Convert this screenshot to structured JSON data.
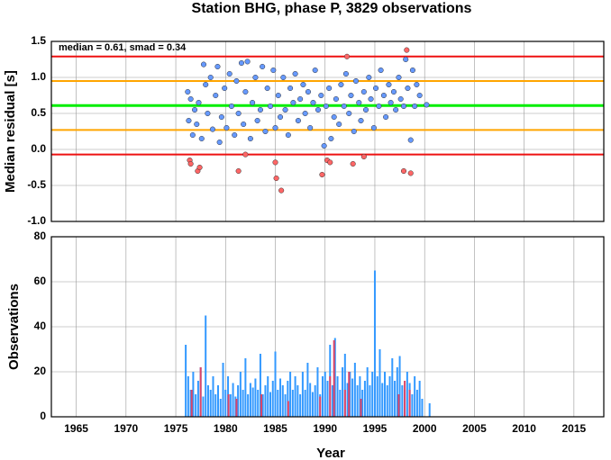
{
  "chart_data": [
    {
      "type": "scatter",
      "title": "Station BHG, phase P, 3829 observations",
      "annotation": "median = 0.61, smad = 0.34",
      "y_label": "Median residual [s]",
      "xlim": [
        1962.5,
        2018
      ],
      "xticks": [
        1965,
        1970,
        1975,
        1980,
        1985,
        1990,
        1995,
        2000,
        2005,
        2010,
        2015
      ],
      "ylim": [
        -1,
        1.5
      ],
      "yticks": [
        {
          "value": -1,
          "label": "-1.0"
        },
        -0.5,
        {
          "value": 0,
          "label": "0.0"
        },
        0.5,
        {
          "value": 1,
          "label": "1.0"
        },
        1.5
      ],
      "grid": true,
      "hlines": [
        {
          "value": 1.29,
          "color": "#ee1111"
        },
        {
          "value": 0.95,
          "color": "#ffa500"
        },
        {
          "value": 0.61,
          "color": "#00ee00"
        },
        {
          "value": 0.27,
          "color": "#ffa500"
        },
        {
          "value": -0.07,
          "color": "#ee1111"
        }
      ],
      "series": [
        {
          "color": "#6699ff",
          "x": [
            1976.2,
            1976.3,
            1976.5,
            1976.7,
            1976.9,
            1977.1,
            1977.3,
            1977.6,
            1977.8,
            1978.0,
            1978.2,
            1978.5,
            1978.7,
            1979.0,
            1979.2,
            1979.4,
            1979.6,
            1979.9,
            1980.1,
            1980.4,
            1980.6,
            1980.9,
            1981.1,
            1981.3,
            1981.6,
            1981.8,
            1982.0,
            1982.2,
            1982.5,
            1982.7,
            1983.0,
            1983.2,
            1983.5,
            1983.7,
            1984.0,
            1984.2,
            1984.5,
            1984.8,
            1985.0,
            1985.3,
            1985.5,
            1985.8,
            1986.0,
            1986.3,
            1986.5,
            1986.8,
            1987.0,
            1987.3,
            1987.5,
            1987.8,
            1988.0,
            1988.3,
            1988.5,
            1988.8,
            1989.0,
            1989.3,
            1989.6,
            1989.9,
            1990.1,
            1990.4,
            1990.6,
            1990.9,
            1991.1,
            1991.4,
            1991.6,
            1991.9,
            1992.1,
            1992.4,
            1992.6,
            1992.9,
            1993.1,
            1993.4,
            1993.6,
            1993.9,
            1994.1,
            1994.4,
            1994.6,
            1994.9,
            1995.1,
            1995.4,
            1995.6,
            1995.9,
            1996.1,
            1996.4,
            1996.6,
            1996.9,
            1997.1,
            1997.4,
            1997.6,
            1997.9,
            1998.1,
            1998.3,
            1998.6,
            1998.8,
            1999.0,
            1999.2,
            1999.5,
            2000.2
          ],
          "values": [
            0.8,
            0.4,
            0.7,
            0.2,
            0.55,
            0.35,
            0.65,
            0.15,
            1.18,
            0.9,
            0.5,
            1.0,
            0.28,
            0.75,
            1.15,
            0.1,
            0.45,
            0.85,
            0.3,
            1.05,
            0.6,
            0.2,
            0.95,
            0.5,
            1.2,
            0.35,
            0.8,
            1.22,
            0.15,
            0.65,
            1.0,
            0.4,
            0.55,
            1.15,
            0.25,
            0.85,
            0.6,
            1.1,
            0.3,
            0.75,
            0.45,
            1.0,
            0.55,
            0.2,
            0.85,
            0.65,
            1.05,
            0.4,
            0.7,
            0.9,
            0.5,
            0.8,
            0.3,
            0.65,
            1.1,
            0.55,
            0.75,
            0.05,
            0.6,
            0.85,
            0.15,
            0.45,
            0.7,
            0.35,
            0.9,
            0.6,
            1.05,
            0.5,
            0.75,
            0.25,
            0.95,
            0.65,
            0.4,
            0.8,
            0.55,
            1.0,
            0.7,
            0.3,
            0.85,
            0.6,
            1.1,
            0.75,
            0.45,
            0.9,
            0.65,
            0.8,
            0.55,
            1.0,
            0.7,
            0.6,
            1.25,
            0.85,
            0.13,
            1.1,
            0.6,
            0.9,
            0.75,
            0.62
          ]
        },
        {
          "color": "#ff6666",
          "x": [
            1976.4,
            1976.5,
            1977.2,
            1977.4,
            1981.3,
            1982.0,
            1985.0,
            1985.1,
            1985.6,
            1989.7,
            1990.2,
            1990.5,
            1992.2,
            1992.8,
            1993.9,
            1997.9,
            1998.2,
            1998.6
          ],
          "values": [
            -0.15,
            -0.2,
            -0.3,
            -0.25,
            -0.3,
            -0.07,
            -0.18,
            -0.4,
            -0.57,
            -0.35,
            -0.15,
            -0.18,
            1.29,
            -0.2,
            -0.1,
            -0.3,
            1.38,
            -0.33
          ]
        }
      ]
    },
    {
      "type": "bar",
      "x_label": "Year",
      "y_label": "Observations",
      "xlim": [
        1962.5,
        2018
      ],
      "xticks": [
        1965,
        1970,
        1975,
        1980,
        1985,
        1990,
        1995,
        2000,
        2005,
        2010,
        2015
      ],
      "ylim": [
        0,
        80
      ],
      "yticks": [
        0,
        20,
        40,
        60,
        80
      ],
      "grid": true,
      "series": [
        {
          "color": "#3399ff",
          "x": [
            1976.0,
            1976.25,
            1976.5,
            1976.75,
            1977.0,
            1977.25,
            1977.5,
            1977.75,
            1978.0,
            1978.25,
            1978.5,
            1978.75,
            1979.0,
            1979.25,
            1979.5,
            1979.75,
            1980.0,
            1980.25,
            1980.5,
            1980.75,
            1981.0,
            1981.25,
            1981.5,
            1981.75,
            1982.0,
            1982.25,
            1982.5,
            1982.75,
            1983.0,
            1983.25,
            1983.5,
            1983.75,
            1984.0,
            1984.25,
            1984.5,
            1984.75,
            1985.0,
            1985.25,
            1985.5,
            1985.75,
            1986.0,
            1986.25,
            1986.5,
            1986.75,
            1987.0,
            1987.25,
            1987.5,
            1987.75,
            1988.0,
            1988.25,
            1988.5,
            1988.75,
            1989.0,
            1989.25,
            1989.5,
            1989.75,
            1990.0,
            1990.25,
            1990.5,
            1990.75,
            1991.0,
            1991.25,
            1991.5,
            1991.75,
            1992.0,
            1992.25,
            1992.5,
            1992.75,
            1993.0,
            1993.25,
            1993.5,
            1993.75,
            1994.0,
            1994.25,
            1994.5,
            1994.75,
            1995.0,
            1995.25,
            1995.5,
            1995.75,
            1996.0,
            1996.25,
            1996.5,
            1996.75,
            1997.0,
            1997.25,
            1997.5,
            1997.75,
            1998.0,
            1998.25,
            1998.5,
            1998.75,
            1999.0,
            1999.25,
            1999.5,
            1999.75,
            2000.5
          ],
          "values": [
            32,
            18,
            12,
            20,
            10,
            16,
            22,
            9,
            45,
            14,
            12,
            18,
            10,
            14,
            8,
            24,
            12,
            18,
            10,
            15,
            9,
            14,
            20,
            12,
            26,
            10,
            15,
            13,
            17,
            12,
            28,
            10,
            14,
            18,
            11,
            16,
            29,
            12,
            17,
            14,
            10,
            16,
            20,
            12,
            18,
            14,
            10,
            20,
            12,
            24,
            15,
            11,
            14,
            22,
            10,
            18,
            20,
            16,
            32,
            14,
            35,
            18,
            12,
            22,
            28,
            15,
            20,
            17,
            24,
            14,
            18,
            12,
            16,
            22,
            14,
            20,
            65,
            18,
            30,
            15,
            20,
            14,
            18,
            26,
            16,
            22,
            27,
            14,
            12,
            20,
            15,
            10,
            18,
            12,
            16,
            8,
            6
          ]
        },
        {
          "color": "#dd4466",
          "x": [
            1976.6,
            1977.5,
            1980.3,
            1981.1,
            1983.6,
            1986.3,
            1989.5,
            1990.5,
            1990.9,
            1992.0,
            1992.4,
            1993.6,
            1997.4,
            1998.0,
            1998.5
          ],
          "values": [
            12,
            22,
            10,
            8,
            10,
            7,
            9,
            18,
            34,
            12,
            20,
            8,
            10,
            16,
            12
          ]
        }
      ]
    }
  ]
}
